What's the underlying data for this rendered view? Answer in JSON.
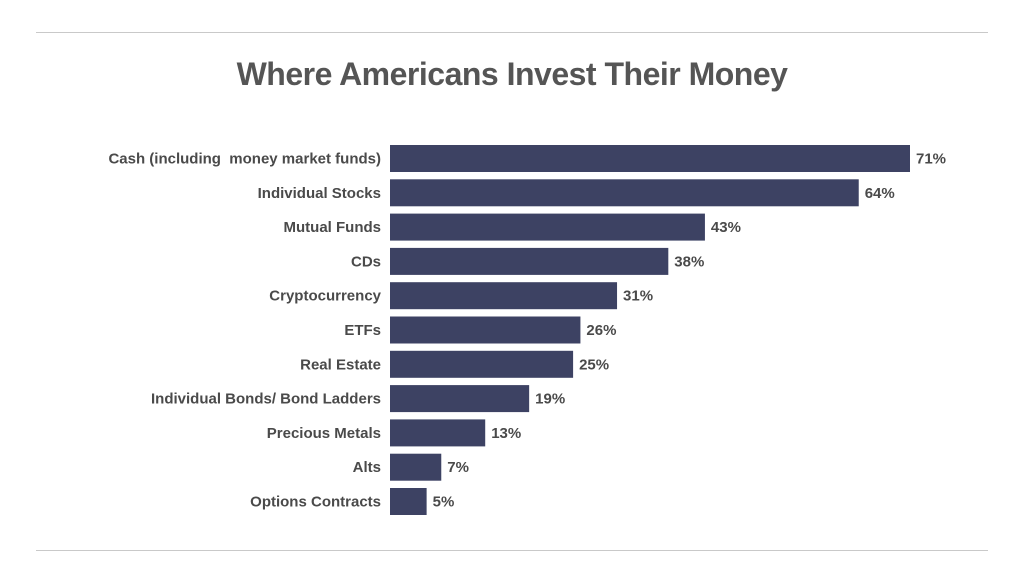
{
  "chart_data": {
    "type": "bar",
    "orientation": "horizontal",
    "title": "Where Americans Invest Their Money",
    "categories": [
      "Cash (including  money market funds)",
      "Individual Stocks",
      "Mutual Funds",
      "CDs",
      "Cryptocurrency",
      "ETFs",
      "Real Estate",
      "Individual Bonds/ Bond Ladders",
      "Precious Metals",
      "Alts",
      "Options Contracts"
    ],
    "values": [
      71,
      64,
      43,
      38,
      31,
      26,
      25,
      19,
      13,
      7,
      5
    ],
    "value_labels": [
      "71%",
      "64%",
      "43%",
      "38%",
      "31%",
      "26%",
      "25%",
      "19%",
      "13%",
      "7%",
      "5%"
    ],
    "unit": "%",
    "xlim": [
      0,
      71
    ],
    "grid": false,
    "bar_color": "#3d4263"
  }
}
